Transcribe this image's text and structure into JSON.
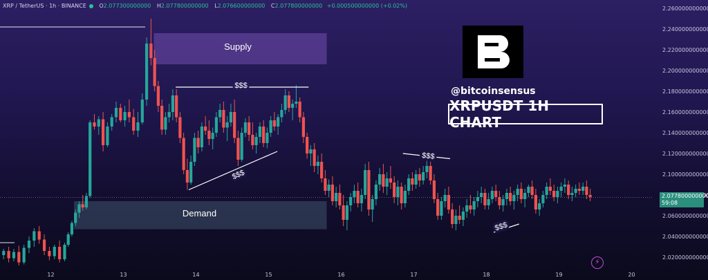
{
  "header": {
    "symbol": "XRP / TetherUS · 1h · BINANCE",
    "open_label": "O",
    "open": "2.077300000000",
    "high_label": "H",
    "high": "2.077800000000",
    "low_label": "L",
    "low": "2.076600000000",
    "close_label": "C",
    "close": "2.077800000000",
    "change": "+0.000500000000 (+0.02%)"
  },
  "branding": {
    "logo_letter": "B",
    "handle": "@bitcoinsensus",
    "title": "XRPUSDT 1H CHART"
  },
  "price_tag": {
    "price": "2.077800000000",
    "countdown": "59:08"
  },
  "colors": {
    "up": "#26a69a",
    "down": "#ef5350",
    "supply_zone": "#6a4aa6",
    "demand_zone": "#3b4d66",
    "price_tag": "#2b8f7e"
  },
  "chart_data": {
    "type": "candlestick",
    "series": "XRP / TetherUS 1h",
    "x_tick_labels": [
      "12",
      "13",
      "14",
      "15",
      "16",
      "17",
      "18",
      "19",
      "20"
    ],
    "y_tick_labels": [
      "2.260000000000",
      "2.240000000000",
      "2.220000000000",
      "2.200000000000",
      "2.180000000000",
      "2.160000000000",
      "2.140000000000",
      "2.120000000000",
      "2.100000000000",
      "2.080000000000",
      "2.060000000000",
      "2.040000000000",
      "2.020000000000"
    ],
    "ylim": [
      2.008,
      2.268
    ],
    "xlim": [
      11.3,
      20.3
    ],
    "last_price": 2.0778,
    "zones": [
      {
        "label": "Supply",
        "x0": 13.42,
        "x1": 15.8,
        "y0": 2.206,
        "y1": 2.236
      },
      {
        "label": "Demand",
        "x0": 12.32,
        "x1": 15.8,
        "y0": 2.047,
        "y1": 2.074
      }
    ],
    "annotations": [
      {
        "text": "$$$",
        "x": 14.62,
        "y": 2.186,
        "kind": "level",
        "x0": 13.72,
        "x1": 15.55,
        "y0": 2.184,
        "y1": 2.184
      },
      {
        "text": "$$$",
        "x": 14.58,
        "y": 2.1,
        "kind": "trend",
        "x0": 13.9,
        "x1": 15.12,
        "y0": 2.085,
        "y1": 2.122
      },
      {
        "text": "$$$",
        "x": 17.2,
        "y": 2.118,
        "kind": "trend",
        "x0": 16.85,
        "x1": 17.5,
        "y0": 2.12,
        "y1": 2.115
      },
      {
        "text": "$$$",
        "x": 18.2,
        "y": 2.05,
        "kind": "trend",
        "x0": 18.1,
        "x1": 18.45,
        "y0": 2.044,
        "y1": 2.052
      }
    ],
    "lines": [
      {
        "x0": 11.3,
        "x1": 13.3,
        "y": 2.242
      },
      {
        "x0": 11.3,
        "x1": 11.5,
        "y": 2.034
      }
    ],
    "candles": [
      [
        11.35,
        2.022,
        2.028,
        2.018,
        2.026
      ],
      [
        11.42,
        2.026,
        2.03,
        2.015,
        2.019
      ],
      [
        11.49,
        2.019,
        2.028,
        2.016,
        2.025
      ],
      [
        11.56,
        2.025,
        2.031,
        2.012,
        2.015
      ],
      [
        11.63,
        2.015,
        2.032,
        2.013,
        2.029
      ],
      [
        11.7,
        2.029,
        2.04,
        2.024,
        2.036
      ],
      [
        11.77,
        2.036,
        2.048,
        2.03,
        2.045
      ],
      [
        11.84,
        2.045,
        2.05,
        2.033,
        2.037
      ],
      [
        11.91,
        2.037,
        2.042,
        2.022,
        2.026
      ],
      [
        11.98,
        2.026,
        2.03,
        2.017,
        2.021
      ],
      [
        12.05,
        2.021,
        2.032,
        2.018,
        2.03
      ],
      [
        12.12,
        2.03,
        2.036,
        2.015,
        2.018
      ],
      [
        12.19,
        2.018,
        2.034,
        2.016,
        2.032
      ],
      [
        12.24,
        2.032,
        2.044,
        2.03,
        2.042
      ],
      [
        12.29,
        2.042,
        2.055,
        2.04,
        2.053
      ],
      [
        12.34,
        2.053,
        2.066,
        2.05,
        2.063
      ],
      [
        12.39,
        2.063,
        2.074,
        2.058,
        2.071
      ],
      [
        12.44,
        2.071,
        2.08,
        2.065,
        2.068
      ],
      [
        12.49,
        2.068,
        2.082,
        2.066,
        2.079
      ],
      [
        12.54,
        2.079,
        2.152,
        2.077,
        2.15
      ],
      [
        12.6,
        2.15,
        2.158,
        2.143,
        2.146
      ],
      [
        12.66,
        2.146,
        2.156,
        2.138,
        2.153
      ],
      [
        12.72,
        2.153,
        2.16,
        2.122,
        2.128
      ],
      [
        12.78,
        2.128,
        2.15,
        2.126,
        2.146
      ],
      [
        12.84,
        2.146,
        2.158,
        2.142,
        2.155
      ],
      [
        12.9,
        2.155,
        2.17,
        2.15,
        2.164
      ],
      [
        12.96,
        2.164,
        2.168,
        2.15,
        2.152
      ],
      [
        13.02,
        2.152,
        2.166,
        2.146,
        2.16
      ],
      [
        13.08,
        2.16,
        2.172,
        2.15,
        2.155
      ],
      [
        13.14,
        2.155,
        2.163,
        2.138,
        2.142
      ],
      [
        13.2,
        2.142,
        2.16,
        2.136,
        2.15
      ],
      [
        13.26,
        2.15,
        2.178,
        2.148,
        2.172
      ],
      [
        13.32,
        2.172,
        2.232,
        2.166,
        2.226
      ],
      [
        13.38,
        2.226,
        2.25,
        2.205,
        2.212
      ],
      [
        13.43,
        2.212,
        2.22,
        2.18,
        2.185
      ],
      [
        13.48,
        2.185,
        2.19,
        2.16,
        2.166
      ],
      [
        13.53,
        2.166,
        2.172,
        2.138,
        2.143
      ],
      [
        13.58,
        2.143,
        2.16,
        2.138,
        2.155
      ],
      [
        13.63,
        2.155,
        2.168,
        2.15,
        2.16
      ],
      [
        13.68,
        2.16,
        2.182,
        2.152,
        2.176
      ],
      [
        13.73,
        2.176,
        2.182,
        2.15,
        2.155
      ],
      [
        13.78,
        2.155,
        2.16,
        2.13,
        2.135
      ],
      [
        13.83,
        2.135,
        2.14,
        2.1,
        2.104
      ],
      [
        13.88,
        2.104,
        2.115,
        2.085,
        2.092
      ],
      [
        13.93,
        2.092,
        2.118,
        2.09,
        2.112
      ],
      [
        13.98,
        2.112,
        2.14,
        2.108,
        2.135
      ],
      [
        14.03,
        2.135,
        2.142,
        2.12,
        2.126
      ],
      [
        14.08,
        2.126,
        2.15,
        2.122,
        2.146
      ],
      [
        14.13,
        2.146,
        2.156,
        2.138,
        2.142
      ],
      [
        14.18,
        2.142,
        2.152,
        2.128,
        2.134
      ],
      [
        14.23,
        2.134,
        2.145,
        2.124,
        2.14
      ],
      [
        14.28,
        2.14,
        2.16,
        2.136,
        2.155
      ],
      [
        14.33,
        2.155,
        2.168,
        2.15,
        2.162
      ],
      [
        14.38,
        2.162,
        2.17,
        2.14,
        2.145
      ],
      [
        14.43,
        2.145,
        2.156,
        2.132,
        2.15
      ],
      [
        14.48,
        2.15,
        2.168,
        2.146,
        2.16
      ],
      [
        14.53,
        2.16,
        2.172,
        2.13,
        2.135
      ],
      [
        14.58,
        2.135,
        2.142,
        2.108,
        2.114
      ],
      [
        14.63,
        2.114,
        2.145,
        2.112,
        2.14
      ],
      [
        14.68,
        2.14,
        2.154,
        2.136,
        2.15
      ],
      [
        14.73,
        2.15,
        2.156,
        2.132,
        2.138
      ],
      [
        14.78,
        2.138,
        2.15,
        2.124,
        2.128
      ],
      [
        14.83,
        2.128,
        2.14,
        2.12,
        2.136
      ],
      [
        14.88,
        2.136,
        2.15,
        2.13,
        2.146
      ],
      [
        14.93,
        2.146,
        2.152,
        2.126,
        2.13
      ],
      [
        14.98,
        2.13,
        2.145,
        2.125,
        2.14
      ],
      [
        15.03,
        2.14,
        2.156,
        2.136,
        2.152
      ],
      [
        15.08,
        2.152,
        2.16,
        2.142,
        2.146
      ],
      [
        15.13,
        2.146,
        2.158,
        2.138,
        2.155
      ],
      [
        15.18,
        2.155,
        2.168,
        2.15,
        2.162
      ],
      [
        15.23,
        2.162,
        2.182,
        2.158,
        2.176
      ],
      [
        15.28,
        2.176,
        2.18,
        2.16,
        2.164
      ],
      [
        15.33,
        2.164,
        2.172,
        2.152,
        2.168
      ],
      [
        15.38,
        2.168,
        2.186,
        2.164,
        2.17
      ],
      [
        15.43,
        2.17,
        2.174,
        2.15,
        2.155
      ],
      [
        15.48,
        2.155,
        2.16,
        2.13,
        2.136
      ],
      [
        15.53,
        2.136,
        2.14,
        2.115,
        2.12
      ],
      [
        15.58,
        2.12,
        2.128,
        2.108,
        2.124
      ],
      [
        15.63,
        2.124,
        2.13,
        2.102,
        2.108
      ],
      [
        15.68,
        2.108,
        2.118,
        2.1,
        2.112
      ],
      [
        15.73,
        2.112,
        2.12,
        2.092,
        2.096
      ],
      [
        15.78,
        2.096,
        2.104,
        2.08,
        2.084
      ],
      [
        15.83,
        2.084,
        2.095,
        2.078,
        2.09
      ],
      [
        15.88,
        2.09,
        2.098,
        2.07,
        2.074
      ],
      [
        15.93,
        2.074,
        2.088,
        2.068,
        2.082
      ],
      [
        15.98,
        2.082,
        2.09,
        2.066,
        2.07
      ],
      [
        16.03,
        2.07,
        2.08,
        2.05,
        2.056
      ],
      [
        16.08,
        2.056,
        2.074,
        2.046,
        2.07
      ],
      [
        16.13,
        2.07,
        2.082,
        2.064,
        2.078
      ],
      [
        16.18,
        2.078,
        2.09,
        2.072,
        2.084
      ],
      [
        16.23,
        2.084,
        2.092,
        2.068,
        2.072
      ],
      [
        16.28,
        2.072,
        2.086,
        2.064,
        2.08
      ],
      [
        16.33,
        2.08,
        2.11,
        2.076,
        2.104
      ],
      [
        16.38,
        2.104,
        2.112,
        2.06,
        2.066
      ],
      [
        16.43,
        2.066,
        2.08,
        2.054,
        2.076
      ],
      [
        16.48,
        2.076,
        2.094,
        2.07,
        2.09
      ],
      [
        16.53,
        2.09,
        2.106,
        2.084,
        2.1
      ],
      [
        16.58,
        2.1,
        2.11,
        2.082,
        2.088
      ],
      [
        16.63,
        2.088,
        2.102,
        2.08,
        2.096
      ],
      [
        16.68,
        2.096,
        2.108,
        2.086,
        2.092
      ],
      [
        16.73,
        2.092,
        2.098,
        2.072,
        2.078
      ],
      [
        16.78,
        2.078,
        2.094,
        2.07,
        2.088
      ],
      [
        16.83,
        2.088,
        2.092,
        2.066,
        2.072
      ],
      [
        16.88,
        2.072,
        2.09,
        2.068,
        2.084
      ],
      [
        16.93,
        2.084,
        2.1,
        2.08,
        2.096
      ],
      [
        16.98,
        2.096,
        2.102,
        2.084,
        2.09
      ],
      [
        17.03,
        2.09,
        2.104,
        2.086,
        2.1
      ],
      [
        17.08,
        2.1,
        2.106,
        2.088,
        2.094
      ],
      [
        17.13,
        2.094,
        2.108,
        2.09,
        2.102
      ],
      [
        17.18,
        2.102,
        2.114,
        2.096,
        2.108
      ],
      [
        17.23,
        2.108,
        2.112,
        2.09,
        2.094
      ],
      [
        17.28,
        2.094,
        2.1,
        2.072,
        2.076
      ],
      [
        17.33,
        2.076,
        2.082,
        2.056,
        2.06
      ],
      [
        17.38,
        2.06,
        2.078,
        2.056,
        2.074
      ],
      [
        17.43,
        2.074,
        2.086,
        2.068,
        2.08
      ],
      [
        17.48,
        2.08,
        2.088,
        2.062,
        2.066
      ],
      [
        17.53,
        2.066,
        2.072,
        2.048,
        2.052
      ],
      [
        17.58,
        2.052,
        2.066,
        2.046,
        2.06
      ],
      [
        17.63,
        2.06,
        2.07,
        2.052,
        2.056
      ],
      [
        17.68,
        2.056,
        2.068,
        2.05,
        2.064
      ],
      [
        17.73,
        2.064,
        2.076,
        2.058,
        2.07
      ],
      [
        17.78,
        2.07,
        2.08,
        2.062,
        2.066
      ],
      [
        17.83,
        2.066,
        2.078,
        2.06,
        2.074
      ],
      [
        17.88,
        2.074,
        2.084,
        2.068,
        2.078
      ],
      [
        17.93,
        2.078,
        2.088,
        2.072,
        2.082
      ],
      [
        17.98,
        2.082,
        2.086,
        2.066,
        2.07
      ],
      [
        18.03,
        2.07,
        2.082,
        2.066,
        2.076
      ],
      [
        18.08,
        2.076,
        2.088,
        2.072,
        2.084
      ],
      [
        18.13,
        2.084,
        2.09,
        2.074,
        2.078
      ],
      [
        18.18,
        2.078,
        2.084,
        2.066,
        2.07
      ],
      [
        18.23,
        2.07,
        2.08,
        2.064,
        2.076
      ],
      [
        18.28,
        2.076,
        2.086,
        2.07,
        2.082
      ],
      [
        18.33,
        2.082,
        2.088,
        2.07,
        2.074
      ],
      [
        18.38,
        2.074,
        2.084,
        2.066,
        2.08
      ],
      [
        18.43,
        2.08,
        2.09,
        2.074,
        2.086
      ],
      [
        18.48,
        2.086,
        2.092,
        2.072,
        2.076
      ],
      [
        18.53,
        2.076,
        2.086,
        2.068,
        2.082
      ],
      [
        18.58,
        2.082,
        2.09,
        2.078,
        2.088
      ],
      [
        18.63,
        2.088,
        2.094,
        2.076,
        2.08
      ],
      [
        18.68,
        2.08,
        2.086,
        2.062,
        2.066
      ],
      [
        18.73,
        2.066,
        2.076,
        2.06,
        2.072
      ],
      [
        18.78,
        2.072,
        2.084,
        2.068,
        2.08
      ],
      [
        18.83,
        2.08,
        2.092,
        2.076,
        2.088
      ],
      [
        18.88,
        2.088,
        2.096,
        2.08,
        2.084
      ],
      [
        18.93,
        2.084,
        2.09,
        2.074,
        2.078
      ],
      [
        18.98,
        2.078,
        2.088,
        2.072,
        2.084
      ],
      [
        19.03,
        2.084,
        2.092,
        2.078,
        2.088
      ],
      [
        19.08,
        2.088,
        2.096,
        2.082,
        2.09
      ],
      [
        19.13,
        2.09,
        2.094,
        2.076,
        2.08
      ],
      [
        19.18,
        2.08,
        2.088,
        2.074,
        2.082
      ],
      [
        19.23,
        2.082,
        2.09,
        2.078,
        2.086
      ],
      [
        19.28,
        2.086,
        2.092,
        2.08,
        2.084
      ],
      [
        19.33,
        2.084,
        2.092,
        2.08,
        2.088
      ],
      [
        19.38,
        2.088,
        2.094,
        2.076,
        2.08
      ],
      [
        19.43,
        2.08,
        2.086,
        2.074,
        2.078
      ]
    ]
  }
}
